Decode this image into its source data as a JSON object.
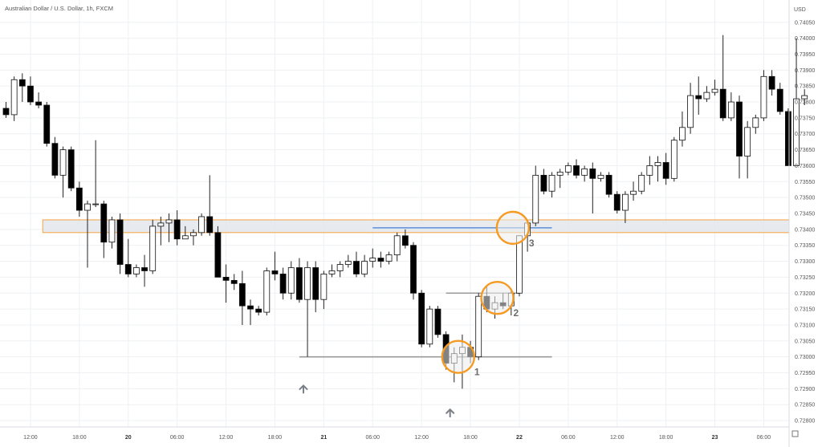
{
  "chart_data": {
    "type": "candlestick",
    "title": "Australian Dollar / U.S. Dollar, 1h, FXCM",
    "currency_label": "USD",
    "ylim": [
      0.7278,
      0.7412
    ],
    "yticks": [
      0.728,
      0.7285,
      0.729,
      0.7295,
      0.73,
      0.7305,
      0.731,
      0.7315,
      0.732,
      0.7325,
      0.733,
      0.7335,
      0.734,
      0.7345,
      0.735,
      0.7355,
      0.736,
      0.7365,
      0.737,
      0.7375,
      0.738,
      0.7385,
      0.739,
      0.7395,
      0.74,
      0.7405
    ],
    "ytick_labels": [
      "0.72800",
      "0.72850",
      "0.72900",
      "0.72950",
      "0.73000",
      "0.73050",
      "0.73100",
      "0.73150",
      "0.73200",
      "0.73250",
      "0.73300",
      "0.73350",
      "0.73400",
      "0.73450",
      "0.73500",
      "0.73550",
      "0.73600",
      "0.73650",
      "0.73700",
      "0.73750",
      "0.73800",
      "0.73850",
      "0.73900",
      "0.73950",
      "0.74000",
      "0.74050"
    ],
    "xticks": [
      {
        "index": 3,
        "label": "12:00",
        "bold": false
      },
      {
        "index": 9,
        "label": "18:00",
        "bold": false
      },
      {
        "index": 15,
        "label": "20",
        "bold": true
      },
      {
        "index": 21,
        "label": "06:00",
        "bold": false
      },
      {
        "index": 27,
        "label": "12:00",
        "bold": false
      },
      {
        "index": 33,
        "label": "18:00",
        "bold": false
      },
      {
        "index": 39,
        "label": "21",
        "bold": true
      },
      {
        "index": 45,
        "label": "06:00",
        "bold": false
      },
      {
        "index": 51,
        "label": "12:00",
        "bold": false
      },
      {
        "index": 57,
        "label": "18:00",
        "bold": false
      },
      {
        "index": 63,
        "label": "22",
        "bold": true
      },
      {
        "index": 69,
        "label": "06:00",
        "bold": false
      },
      {
        "index": 75,
        "label": "12:00",
        "bold": false
      },
      {
        "index": 81,
        "label": "18:00",
        "bold": false
      },
      {
        "index": 87,
        "label": "23",
        "bold": true
      },
      {
        "index": 93,
        "label": "06:00",
        "bold": false
      }
    ],
    "candles": [
      {
        "o": 0.7378,
        "h": 0.738,
        "l": 0.7375,
        "c": 0.7376
      },
      {
        "o": 0.7376,
        "h": 0.7388,
        "l": 0.7374,
        "c": 0.7387
      },
      {
        "o": 0.7387,
        "h": 0.7389,
        "l": 0.738,
        "c": 0.7385
      },
      {
        "o": 0.7385,
        "h": 0.7388,
        "l": 0.7379,
        "c": 0.738
      },
      {
        "o": 0.738,
        "h": 0.7383,
        "l": 0.7378,
        "c": 0.7379
      },
      {
        "o": 0.7379,
        "h": 0.738,
        "l": 0.7366,
        "c": 0.7367
      },
      {
        "o": 0.7367,
        "h": 0.7369,
        "l": 0.7356,
        "c": 0.7357
      },
      {
        "o": 0.7357,
        "h": 0.7366,
        "l": 0.735,
        "c": 0.7365
      },
      {
        "o": 0.7365,
        "h": 0.7366,
        "l": 0.7352,
        "c": 0.7353
      },
      {
        "o": 0.7353,
        "h": 0.7355,
        "l": 0.7344,
        "c": 0.7346
      },
      {
        "o": 0.7346,
        "h": 0.7349,
        "l": 0.7328,
        "c": 0.7348
      },
      {
        "o": 0.7348,
        "h": 0.7368,
        "l": 0.7347,
        "c": 0.7348
      },
      {
        "o": 0.7348,
        "h": 0.7349,
        "l": 0.7331,
        "c": 0.7336
      },
      {
        "o": 0.7336,
        "h": 0.7344,
        "l": 0.7334,
        "c": 0.7343
      },
      {
        "o": 0.7343,
        "h": 0.7345,
        "l": 0.7326,
        "c": 0.7329
      },
      {
        "o": 0.7329,
        "h": 0.7337,
        "l": 0.7325,
        "c": 0.7326
      },
      {
        "o": 0.7326,
        "h": 0.7329,
        "l": 0.7325,
        "c": 0.7328
      },
      {
        "o": 0.7328,
        "h": 0.7332,
        "l": 0.7322,
        "c": 0.7327
      },
      {
        "o": 0.7327,
        "h": 0.7343,
        "l": 0.7326,
        "c": 0.7341
      },
      {
        "o": 0.7341,
        "h": 0.7344,
        "l": 0.7335,
        "c": 0.7342
      },
      {
        "o": 0.7342,
        "h": 0.7345,
        "l": 0.7336,
        "c": 0.7343
      },
      {
        "o": 0.7343,
        "h": 0.7346,
        "l": 0.7335,
        "c": 0.7337
      },
      {
        "o": 0.7337,
        "h": 0.7341,
        "l": 0.7337,
        "c": 0.7338
      },
      {
        "o": 0.7338,
        "h": 0.734,
        "l": 0.7335,
        "c": 0.7339
      },
      {
        "o": 0.7339,
        "h": 0.7345,
        "l": 0.7338,
        "c": 0.7344
      },
      {
        "o": 0.7344,
        "h": 0.7357,
        "l": 0.7338,
        "c": 0.7339
      },
      {
        "o": 0.7339,
        "h": 0.7341,
        "l": 0.7325,
        "c": 0.7325
      },
      {
        "o": 0.7325,
        "h": 0.7329,
        "l": 0.7317,
        "c": 0.7324
      },
      {
        "o": 0.7324,
        "h": 0.7326,
        "l": 0.7321,
        "c": 0.7323
      },
      {
        "o": 0.7323,
        "h": 0.7327,
        "l": 0.731,
        "c": 0.7316
      },
      {
        "o": 0.7316,
        "h": 0.7318,
        "l": 0.731,
        "c": 0.7315
      },
      {
        "o": 0.7315,
        "h": 0.7316,
        "l": 0.7313,
        "c": 0.7314
      },
      {
        "o": 0.7314,
        "h": 0.7328,
        "l": 0.7313,
        "c": 0.7327
      },
      {
        "o": 0.7327,
        "h": 0.7333,
        "l": 0.7324,
        "c": 0.7326
      },
      {
        "o": 0.7326,
        "h": 0.7328,
        "l": 0.7318,
        "c": 0.732
      },
      {
        "o": 0.732,
        "h": 0.733,
        "l": 0.7318,
        "c": 0.7328
      },
      {
        "o": 0.7328,
        "h": 0.7331,
        "l": 0.7317,
        "c": 0.7318
      },
      {
        "o": 0.7318,
        "h": 0.733,
        "l": 0.73,
        "c": 0.7328
      },
      {
        "o": 0.7328,
        "h": 0.733,
        "l": 0.7314,
        "c": 0.7318
      },
      {
        "o": 0.7318,
        "h": 0.7327,
        "l": 0.7315,
        "c": 0.7326
      },
      {
        "o": 0.7326,
        "h": 0.7329,
        "l": 0.7325,
        "c": 0.7327
      },
      {
        "o": 0.7327,
        "h": 0.733,
        "l": 0.7325,
        "c": 0.7329
      },
      {
        "o": 0.7329,
        "h": 0.7332,
        "l": 0.7328,
        "c": 0.733
      },
      {
        "o": 0.733,
        "h": 0.7333,
        "l": 0.7325,
        "c": 0.7326
      },
      {
        "o": 0.7326,
        "h": 0.7332,
        "l": 0.7325,
        "c": 0.733
      },
      {
        "o": 0.733,
        "h": 0.7334,
        "l": 0.7328,
        "c": 0.7331
      },
      {
        "o": 0.7331,
        "h": 0.7333,
        "l": 0.7328,
        "c": 0.733
      },
      {
        "o": 0.733,
        "h": 0.7333,
        "l": 0.7329,
        "c": 0.7332
      },
      {
        "o": 0.7332,
        "h": 0.7339,
        "l": 0.733,
        "c": 0.7338
      },
      {
        "o": 0.7338,
        "h": 0.734,
        "l": 0.7334,
        "c": 0.7335
      },
      {
        "o": 0.7335,
        "h": 0.7336,
        "l": 0.7318,
        "c": 0.732
      },
      {
        "o": 0.732,
        "h": 0.7321,
        "l": 0.7303,
        "c": 0.7304
      },
      {
        "o": 0.7304,
        "h": 0.7316,
        "l": 0.7303,
        "c": 0.7315
      },
      {
        "o": 0.7315,
        "h": 0.7316,
        "l": 0.7306,
        "c": 0.7307
      },
      {
        "o": 0.7307,
        "h": 0.7308,
        "l": 0.7296,
        "c": 0.7298
      },
      {
        "o": 0.7298,
        "h": 0.7303,
        "l": 0.7292,
        "c": 0.7301
      },
      {
        "o": 0.7301,
        "h": 0.7307,
        "l": 0.729,
        "c": 0.7303
      },
      {
        "o": 0.7303,
        "h": 0.7305,
        "l": 0.7298,
        "c": 0.73
      },
      {
        "o": 0.73,
        "h": 0.732,
        "l": 0.7299,
        "c": 0.7319
      },
      {
        "o": 0.7319,
        "h": 0.7322,
        "l": 0.7314,
        "c": 0.7315
      },
      {
        "o": 0.7315,
        "h": 0.7319,
        "l": 0.7312,
        "c": 0.7317
      },
      {
        "o": 0.7317,
        "h": 0.732,
        "l": 0.7315,
        "c": 0.7316
      },
      {
        "o": 0.7316,
        "h": 0.7321,
        "l": 0.7313,
        "c": 0.732
      },
      {
        "o": 0.732,
        "h": 0.7338,
        "l": 0.7319,
        "c": 0.7338
      },
      {
        "o": 0.7338,
        "h": 0.7343,
        "l": 0.7333,
        "c": 0.7342
      },
      {
        "o": 0.7342,
        "h": 0.736,
        "l": 0.7341,
        "c": 0.7357
      },
      {
        "o": 0.7357,
        "h": 0.7359,
        "l": 0.7351,
        "c": 0.7352
      },
      {
        "o": 0.7352,
        "h": 0.7358,
        "l": 0.735,
        "c": 0.7357
      },
      {
        "o": 0.7357,
        "h": 0.7359,
        "l": 0.7353,
        "c": 0.7358
      },
      {
        "o": 0.7358,
        "h": 0.7361,
        "l": 0.7357,
        "c": 0.736
      },
      {
        "o": 0.736,
        "h": 0.7362,
        "l": 0.7356,
        "c": 0.7357
      },
      {
        "o": 0.7357,
        "h": 0.736,
        "l": 0.7355,
        "c": 0.7359
      },
      {
        "o": 0.7359,
        "h": 0.7361,
        "l": 0.7345,
        "c": 0.7356
      },
      {
        "o": 0.7356,
        "h": 0.7358,
        "l": 0.7355,
        "c": 0.7357
      },
      {
        "o": 0.7357,
        "h": 0.7358,
        "l": 0.735,
        "c": 0.7351
      },
      {
        "o": 0.7351,
        "h": 0.7352,
        "l": 0.7345,
        "c": 0.7346
      },
      {
        "o": 0.7346,
        "h": 0.7352,
        "l": 0.7342,
        "c": 0.7351
      },
      {
        "o": 0.7351,
        "h": 0.7355,
        "l": 0.7349,
        "c": 0.7352
      },
      {
        "o": 0.7352,
        "h": 0.7358,
        "l": 0.7351,
        "c": 0.7357
      },
      {
        "o": 0.7357,
        "h": 0.7363,
        "l": 0.7354,
        "c": 0.736
      },
      {
        "o": 0.736,
        "h": 0.7363,
        "l": 0.7355,
        "c": 0.7361
      },
      {
        "o": 0.7361,
        "h": 0.7364,
        "l": 0.7354,
        "c": 0.7356
      },
      {
        "o": 0.7356,
        "h": 0.7369,
        "l": 0.7355,
        "c": 0.7368
      },
      {
        "o": 0.7368,
        "h": 0.7377,
        "l": 0.7366,
        "c": 0.7372
      },
      {
        "o": 0.7372,
        "h": 0.7386,
        "l": 0.737,
        "c": 0.7382
      },
      {
        "o": 0.7382,
        "h": 0.7388,
        "l": 0.7376,
        "c": 0.7381
      },
      {
        "o": 0.7381,
        "h": 0.7385,
        "l": 0.738,
        "c": 0.7383
      },
      {
        "o": 0.7383,
        "h": 0.7387,
        "l": 0.7382,
        "c": 0.7384
      },
      {
        "o": 0.7384,
        "h": 0.7401,
        "l": 0.7374,
        "c": 0.7375
      },
      {
        "o": 0.7375,
        "h": 0.7383,
        "l": 0.7374,
        "c": 0.738
      },
      {
        "o": 0.738,
        "h": 0.7382,
        "l": 0.7356,
        "c": 0.7363
      },
      {
        "o": 0.7363,
        "h": 0.7374,
        "l": 0.7356,
        "c": 0.7372
      },
      {
        "o": 0.7372,
        "h": 0.7376,
        "l": 0.737,
        "c": 0.7375
      },
      {
        "o": 0.7375,
        "h": 0.739,
        "l": 0.7374,
        "c": 0.7388
      },
      {
        "o": 0.7388,
        "h": 0.739,
        "l": 0.7382,
        "c": 0.7384
      },
      {
        "o": 0.7384,
        "h": 0.7386,
        "l": 0.7376,
        "c": 0.7377
      },
      {
        "o": 0.7377,
        "h": 0.7378,
        "l": 0.736,
        "c": 0.736
      },
      {
        "o": 0.736,
        "h": 0.74,
        "l": 0.736,
        "c": 0.7381
      },
      {
        "o": 0.7381,
        "h": 0.7384,
        "l": 0.7379,
        "c": 0.7382
      }
    ],
    "annotations": {
      "resistance_zone": {
        "from_index": 5,
        "y_low": 0.7339,
        "y_high": 0.7343
      },
      "low_line": {
        "from_index": 36,
        "to_index": 67,
        "y": 0.73
      },
      "level_line_2": {
        "from_index": 54,
        "to_index": 63,
        "y": 0.732
      },
      "level_line_3": {
        "from_index": 45,
        "to_index": 67,
        "y": 0.73405
      },
      "arrows": [
        {
          "index": 36.5,
          "y": 0.72935
        },
        {
          "index": 54.5,
          "y": 0.7286
        }
      ],
      "circles": [
        {
          "index": 55.5,
          "y": 0.73,
          "label": "1"
        },
        {
          "index": 60.3,
          "y": 0.73185,
          "label": "2"
        },
        {
          "index": 62.2,
          "y": 0.73405,
          "label": "3"
        }
      ]
    },
    "colors": {
      "down_candle": "#000000",
      "up_candle": "#ffffff",
      "wick": "#222222",
      "zone_fill": "#e3e6ec",
      "zone_border": "#f5a23c",
      "level_line": "#9a9a9a",
      "level_line_3": "#5b8fd9",
      "circle": "#f59a23",
      "grid": "#eef0f3"
    }
  }
}
